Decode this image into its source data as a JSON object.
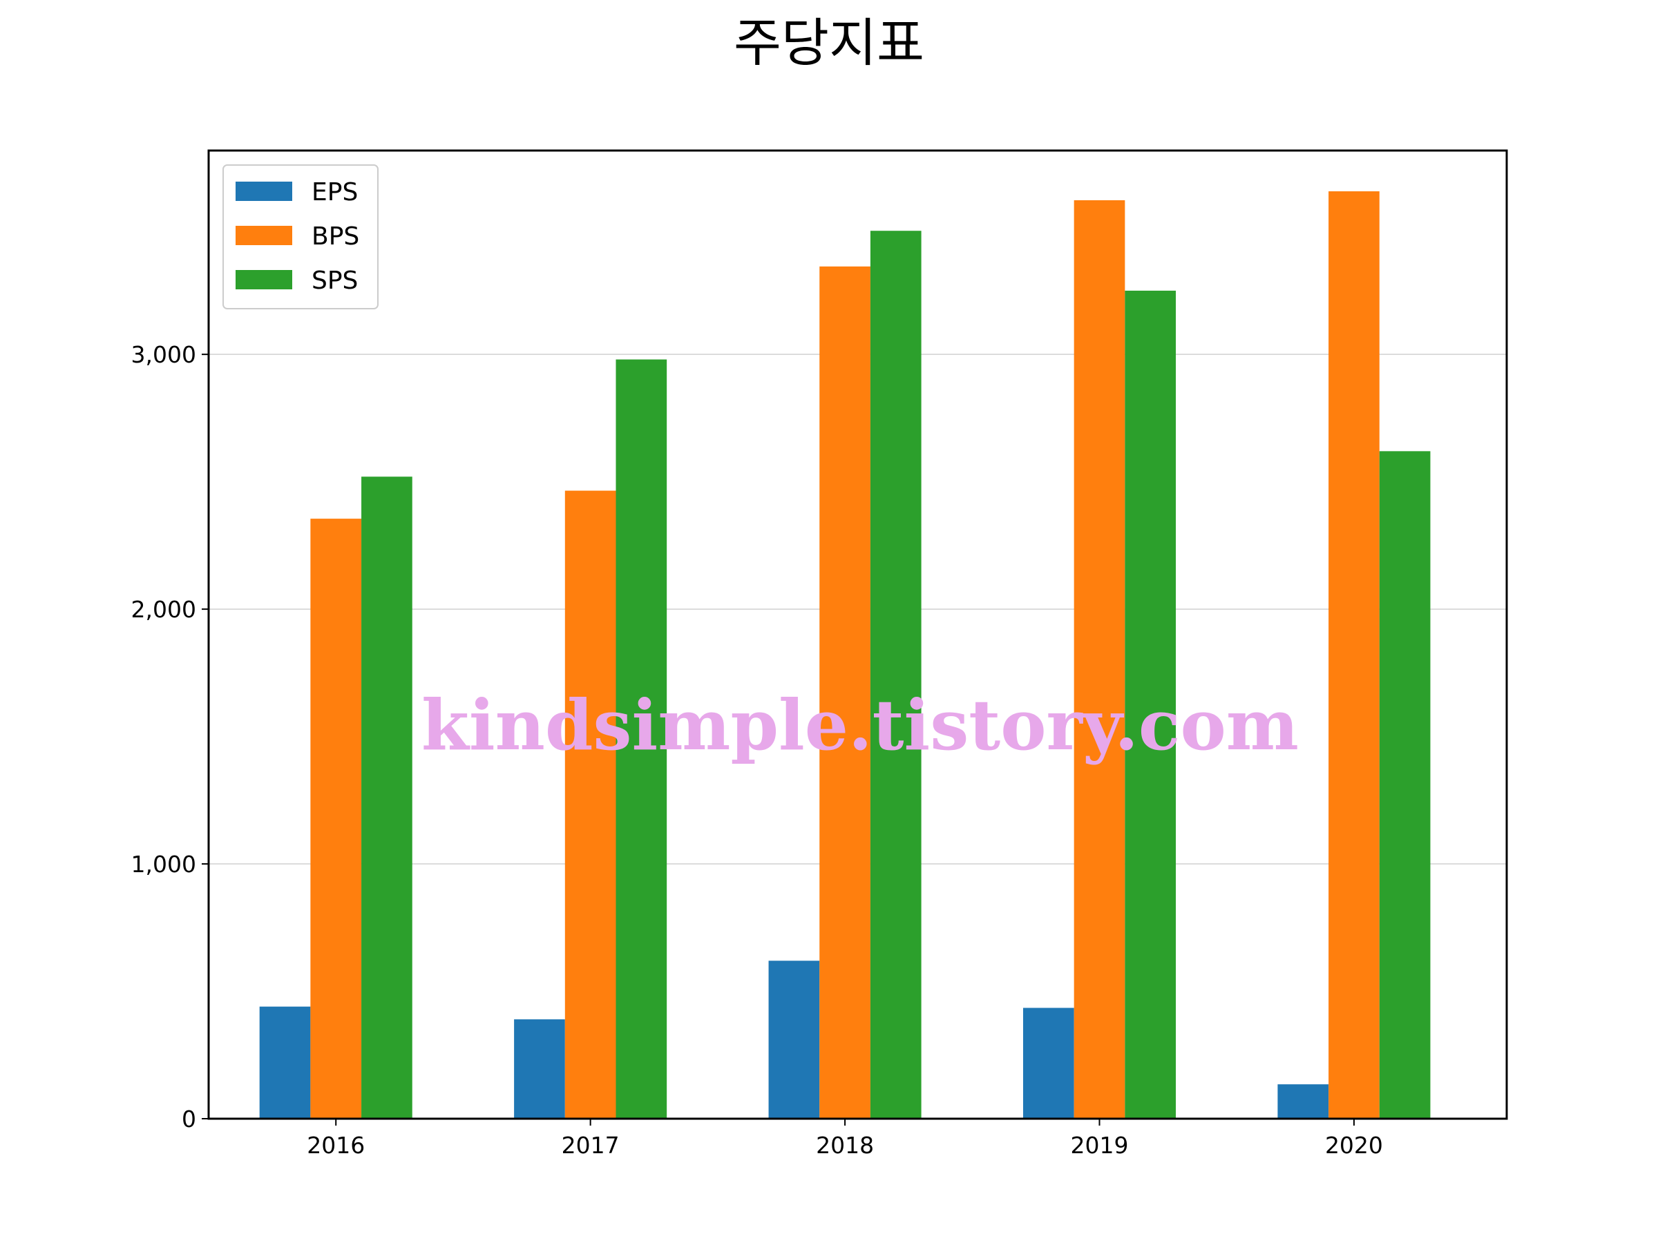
{
  "chart_data": {
    "type": "bar",
    "title": "주당지표",
    "xlabel": "",
    "ylabel": "",
    "categories": [
      "2016",
      "2017",
      "2018",
      "2019",
      "2020"
    ],
    "series": [
      {
        "name": "EPS",
        "color": "#1f77b4",
        "values": [
          440,
          390,
          620,
          435,
          135
        ]
      },
      {
        "name": "BPS",
        "color": "#ff7f0e",
        "values": [
          2355,
          2465,
          3345,
          3605,
          3640
        ]
      },
      {
        "name": "SPS",
        "color": "#2ca02c",
        "values": [
          2520,
          2980,
          3485,
          3250,
          2620
        ]
      }
    ],
    "ylim": [
      0,
      3800
    ],
    "yticks": [
      0,
      1000,
      2000,
      3000
    ],
    "ytick_labels": [
      "0",
      "1,000",
      "2,000",
      "3,000"
    ],
    "grid": "horizontal",
    "legend_position": "top-left",
    "watermark": "kindsimple.tistory.com"
  }
}
